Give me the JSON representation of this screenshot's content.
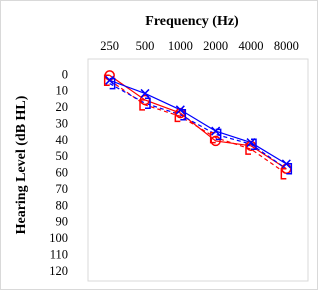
{
  "chart_data": {
    "type": "line",
    "title": "Frequency (Hz)",
    "y_label": "Hearing Level (dB HL)",
    "categories": [
      "250",
      "500",
      "1000",
      "2000",
      "4000",
      "8000"
    ],
    "ylim": [
      -10,
      120
    ],
    "y_inverted": true,
    "yticks": [
      0,
      10,
      20,
      30,
      40,
      50,
      60,
      70,
      80,
      90,
      100,
      110,
      120
    ],
    "grid": false,
    "series": [
      {
        "color": "#ff0000",
        "marker": "circle",
        "dashed": false,
        "values": [
          0,
          15,
          23,
          40,
          43,
          57
        ]
      },
      {
        "color": "#ff0000",
        "marker": "bracket-left",
        "dashed": true,
        "values": [
          3,
          18,
          25,
          38,
          45,
          60
        ]
      },
      {
        "color": "#0000ff",
        "marker": "x",
        "dashed": false,
        "values": [
          3,
          11,
          21,
          34,
          41,
          54
        ]
      },
      {
        "color": "#0000ff",
        "marker": "bracket-right",
        "dashed": true,
        "values": [
          5,
          17,
          24,
          36,
          42,
          57
        ]
      }
    ]
  }
}
